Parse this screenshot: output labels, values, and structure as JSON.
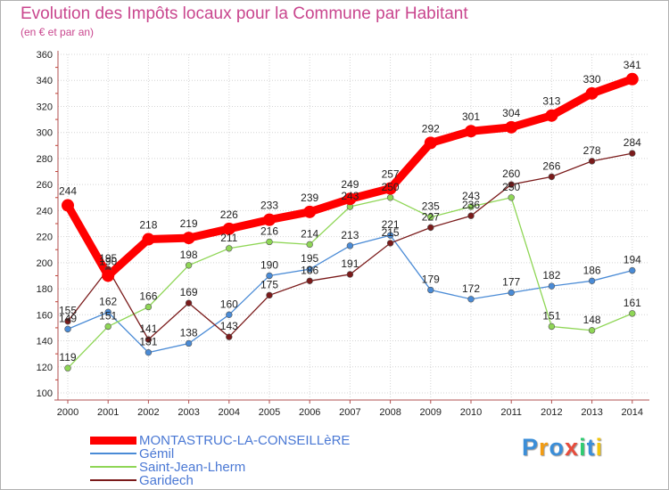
{
  "title": "Evolution des Impôts locaux pour la Commune par Habitant",
  "subtitle": "(en € et par an)",
  "logo": {
    "letters": [
      "P",
      "r",
      "o",
      "x",
      "i",
      "t",
      "i"
    ],
    "colors": [
      "#3b8ed8",
      "#f39c12",
      "#3b8ed8",
      "#e74c3c",
      "#2ecc71",
      "#3b8ed8",
      "#f1c40f"
    ]
  },
  "chart_data": {
    "type": "line",
    "title": "Evolution des Impôts locaux pour la Commune par Habitant",
    "subtitle": "(en € et par an)",
    "xlabel": "",
    "ylabel": "",
    "categories": [
      "2000",
      "2001",
      "2002",
      "2003",
      "2004",
      "2005",
      "2006",
      "2007",
      "2008",
      "2009",
      "2010",
      "2011",
      "2012",
      "2013",
      "2014"
    ],
    "ylim": [
      100,
      360
    ],
    "yticks": [
      100,
      120,
      140,
      160,
      180,
      200,
      220,
      240,
      260,
      280,
      300,
      320,
      340,
      360
    ],
    "grid": true,
    "legend_position": "bottom-left",
    "series": [
      {
        "name": "MONTASTRUC-LA-CONSEILLèRE",
        "color": "#ff0000",
        "values": [
          244,
          190,
          218,
          219,
          226,
          233,
          239,
          249,
          257,
          292,
          301,
          304,
          313,
          330,
          341
        ]
      },
      {
        "name": "Gémil",
        "color": "#4a8bd6",
        "values": [
          149,
          162,
          131,
          138,
          160,
          190,
          195,
          213,
          221,
          179,
          172,
          177,
          182,
          186,
          194
        ]
      },
      {
        "name": "Saint-Jean-Lherm",
        "color": "#8fd656",
        "values": [
          119,
          151,
          166,
          198,
          211,
          216,
          214,
          243,
          250,
          235,
          243,
          250,
          151,
          148,
          161
        ]
      },
      {
        "name": "Garidech",
        "color": "#7a1a1a",
        "values": [
          155,
          195,
          141,
          169,
          143,
          175,
          186,
          191,
          215,
          227,
          236,
          260,
          266,
          278,
          284
        ]
      }
    ]
  }
}
